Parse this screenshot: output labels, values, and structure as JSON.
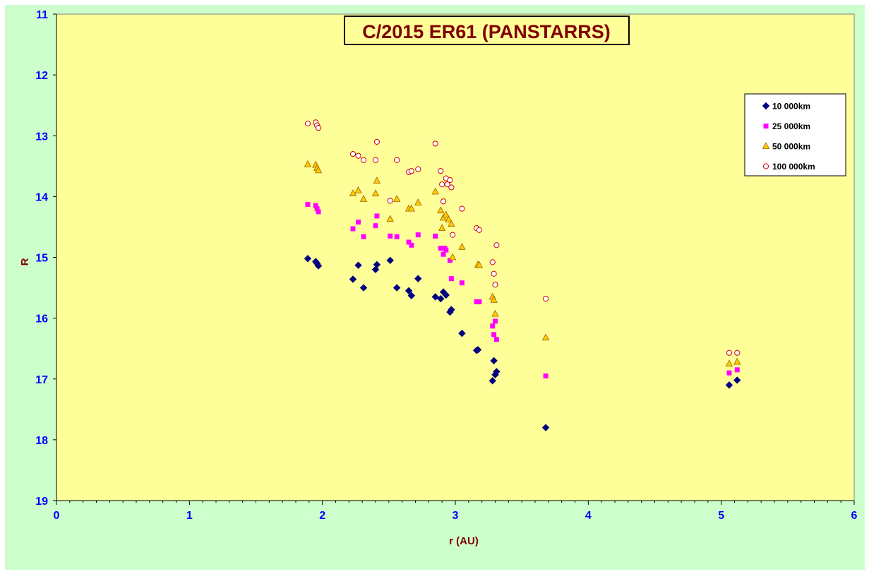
{
  "chart_data": {
    "type": "scatter",
    "title": "C/2015 ER61 (PANSTARRS)",
    "xlabel": "r (AU)",
    "ylabel": "R",
    "xlim": [
      0,
      6
    ],
    "ylim": [
      11,
      19
    ],
    "y_inverted": true,
    "x_ticks": [
      "0",
      "1",
      "2",
      "3",
      "4",
      "5",
      "6"
    ],
    "y_ticks": [
      "11",
      "12",
      "13",
      "14",
      "15",
      "16",
      "17",
      "18",
      "19"
    ],
    "grid": false,
    "legend_position": "top-right",
    "colors": {
      "page": "#ccffcc",
      "plot_area": "#ffff99",
      "title_border": "#000000",
      "tick_text": "#0000ff",
      "axis_title": "#800000"
    },
    "series": [
      {
        "name": "10 000km",
        "marker": "diamond",
        "color": "#000080",
        "points": [
          [
            1.89,
            15.02
          ],
          [
            1.95,
            15.07
          ],
          [
            1.96,
            15.1
          ],
          [
            1.97,
            15.14
          ],
          [
            2.23,
            15.36
          ],
          [
            2.27,
            15.13
          ],
          [
            2.31,
            15.5
          ],
          [
            2.4,
            15.2
          ],
          [
            2.41,
            15.12
          ],
          [
            2.51,
            15.05
          ],
          [
            2.56,
            15.5
          ],
          [
            2.65,
            15.55
          ],
          [
            2.67,
            15.63
          ],
          [
            2.72,
            15.35
          ],
          [
            2.85,
            15.65
          ],
          [
            2.89,
            15.68
          ],
          [
            2.91,
            15.57
          ],
          [
            2.93,
            15.62
          ],
          [
            2.96,
            15.9
          ],
          [
            2.97,
            15.86
          ],
          [
            3.05,
            16.25
          ],
          [
            3.16,
            16.53
          ],
          [
            3.17,
            16.52
          ],
          [
            3.28,
            17.03
          ],
          [
            3.29,
            16.7
          ],
          [
            3.3,
            16.93
          ],
          [
            3.31,
            16.88
          ],
          [
            3.68,
            17.8
          ],
          [
            5.06,
            17.1
          ],
          [
            5.12,
            17.02
          ]
        ]
      },
      {
        "name": "25 000km",
        "marker": "square",
        "color": "#ff00ff",
        "points": [
          [
            1.89,
            14.13
          ],
          [
            1.95,
            14.15
          ],
          [
            1.96,
            14.2
          ],
          [
            1.97,
            14.25
          ],
          [
            2.23,
            14.53
          ],
          [
            2.27,
            14.42
          ],
          [
            2.31,
            14.66
          ],
          [
            2.4,
            14.48
          ],
          [
            2.41,
            14.32
          ],
          [
            2.51,
            14.65
          ],
          [
            2.56,
            14.66
          ],
          [
            2.65,
            14.75
          ],
          [
            2.67,
            14.8
          ],
          [
            2.72,
            14.63
          ],
          [
            2.85,
            14.65
          ],
          [
            2.89,
            14.85
          ],
          [
            2.91,
            14.95
          ],
          [
            2.92,
            14.85
          ],
          [
            2.93,
            14.88
          ],
          [
            2.96,
            15.05
          ],
          [
            2.97,
            15.35
          ],
          [
            3.05,
            15.42
          ],
          [
            3.16,
            15.73
          ],
          [
            3.18,
            15.73
          ],
          [
            3.28,
            16.13
          ],
          [
            3.29,
            16.27
          ],
          [
            3.3,
            16.05
          ],
          [
            3.31,
            16.35
          ],
          [
            3.68,
            16.95
          ],
          [
            5.06,
            16.9
          ],
          [
            5.12,
            16.85
          ]
        ]
      },
      {
        "name": "50 000km",
        "marker": "triangle",
        "color": "#ffcc00",
        "points": [
          [
            1.89,
            13.47
          ],
          [
            1.95,
            13.48
          ],
          [
            1.96,
            13.53
          ],
          [
            1.97,
            13.57
          ],
          [
            2.23,
            13.95
          ],
          [
            2.27,
            13.9
          ],
          [
            2.31,
            14.04
          ],
          [
            2.4,
            13.95
          ],
          [
            2.41,
            13.74
          ],
          [
            2.51,
            14.37
          ],
          [
            2.56,
            14.04
          ],
          [
            2.65,
            14.2
          ],
          [
            2.67,
            14.2
          ],
          [
            2.72,
            14.1
          ],
          [
            2.85,
            13.92
          ],
          [
            2.89,
            14.23
          ],
          [
            2.9,
            14.52
          ],
          [
            2.91,
            14.35
          ],
          [
            2.93,
            14.3
          ],
          [
            2.95,
            14.38
          ],
          [
            2.97,
            14.45
          ],
          [
            2.98,
            15.0
          ],
          [
            3.05,
            14.83
          ],
          [
            3.17,
            15.12
          ],
          [
            3.18,
            15.13
          ],
          [
            3.28,
            15.65
          ],
          [
            3.29,
            15.7
          ],
          [
            3.3,
            15.93
          ],
          [
            3.68,
            16.32
          ],
          [
            5.06,
            16.75
          ],
          [
            5.12,
            16.72
          ]
        ]
      },
      {
        "name": "100 000km",
        "marker": "circle-open",
        "color": "#cc0000",
        "points": [
          [
            1.89,
            12.8
          ],
          [
            1.95,
            12.78
          ],
          [
            1.96,
            12.83
          ],
          [
            1.97,
            12.87
          ],
          [
            2.23,
            13.3
          ],
          [
            2.27,
            13.33
          ],
          [
            2.31,
            13.4
          ],
          [
            2.4,
            13.4
          ],
          [
            2.41,
            13.1
          ],
          [
            2.51,
            14.07
          ],
          [
            2.56,
            13.4
          ],
          [
            2.65,
            13.6
          ],
          [
            2.67,
            13.58
          ],
          [
            2.72,
            13.55
          ],
          [
            2.85,
            13.13
          ],
          [
            2.89,
            13.58
          ],
          [
            2.9,
            13.8
          ],
          [
            2.91,
            14.08
          ],
          [
            2.93,
            13.7
          ],
          [
            2.94,
            13.8
          ],
          [
            2.96,
            13.73
          ],
          [
            2.97,
            13.85
          ],
          [
            2.98,
            14.63
          ],
          [
            3.05,
            14.2
          ],
          [
            3.16,
            14.52
          ],
          [
            3.18,
            14.55
          ],
          [
            3.28,
            15.08
          ],
          [
            3.29,
            15.27
          ],
          [
            3.3,
            15.45
          ],
          [
            3.31,
            14.8
          ],
          [
            3.68,
            15.68
          ],
          [
            5.06,
            16.57
          ],
          [
            5.12,
            16.57
          ]
        ]
      }
    ]
  }
}
